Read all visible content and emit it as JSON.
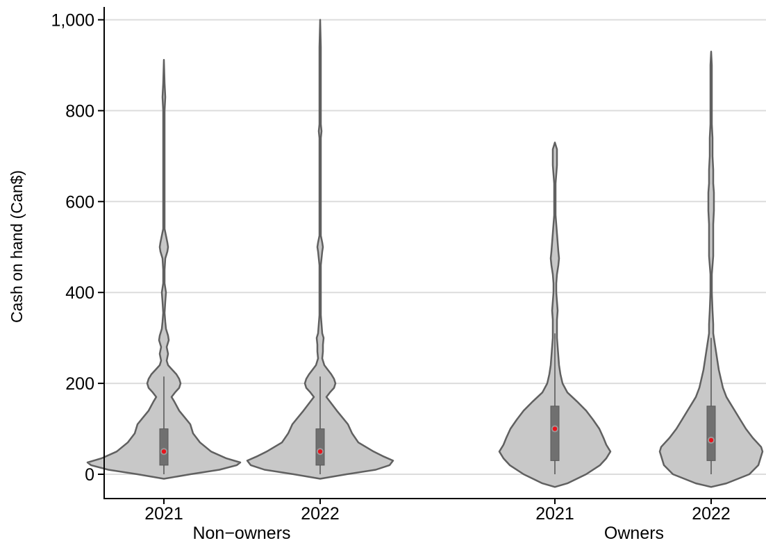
{
  "chart_data": {
    "type": "violin",
    "title": "",
    "ylabel": "Cash on hand (Can$)",
    "xlabel": "",
    "ylim": [
      -50,
      1030
    ],
    "y_ticks": [
      0,
      200,
      400,
      600,
      800,
      1000
    ],
    "y_tick_labels": [
      "0",
      "200",
      "400",
      "600",
      "800",
      "1,000"
    ],
    "grid": true,
    "legend": "none",
    "colors": {
      "violin_fill": "#c8c8c8",
      "violin_stroke": "#606060",
      "box_fill": "#707070",
      "median_dot": "#e8141c",
      "gridline": "#dcdcdc"
    },
    "groups": [
      {
        "name": "Non-owners",
        "label": "Non−owners",
        "violins": [
          {
            "year": "2021",
            "whisker": [
              0,
              215
            ],
            "q1": 20,
            "median": 50,
            "q3": 100,
            "profile": [
              [
                -10,
                0
              ],
              [
                0,
                38
              ],
              [
                10,
                80
              ],
              [
                20,
                105
              ],
              [
                26,
                110
              ],
              [
                35,
                90
              ],
              [
                50,
                68
              ],
              [
                70,
                52
              ],
              [
                90,
                42
              ],
              [
                110,
                38
              ],
              [
                125,
                30
              ],
              [
                140,
                22
              ],
              [
                160,
                15
              ],
              [
                170,
                11
              ],
              [
                180,
                16
              ],
              [
                190,
                22
              ],
              [
                200,
                24
              ],
              [
                210,
                22
              ],
              [
                220,
                18
              ],
              [
                230,
                12
              ],
              [
                240,
                6
              ],
              [
                250,
                4
              ],
              [
                265,
                6
              ],
              [
                280,
                4
              ],
              [
                295,
                7
              ],
              [
                305,
                6
              ],
              [
                320,
                3
              ],
              [
                335,
                2
              ],
              [
                355,
                1
              ],
              [
                380,
                2
              ],
              [
                400,
                3
              ],
              [
                420,
                1
              ],
              [
                450,
                1
              ],
              [
                475,
                2
              ],
              [
                490,
                5
              ],
              [
                500,
                6
              ],
              [
                510,
                5
              ],
              [
                525,
                3
              ],
              [
                540,
                1
              ],
              [
                600,
                1
              ],
              [
                650,
                1
              ],
              [
                700,
                1
              ],
              [
                750,
                1
              ],
              [
                800,
                1
              ],
              [
                830,
                2
              ],
              [
                860,
                1
              ],
              [
                912,
                0
              ]
            ]
          },
          {
            "year": "2022",
            "whisker": [
              0,
              215
            ],
            "q1": 20,
            "median": 50,
            "q3": 100,
            "profile": [
              [
                -10,
                0
              ],
              [
                0,
                38
              ],
              [
                10,
                80
              ],
              [
                20,
                100
              ],
              [
                30,
                105
              ],
              [
                40,
                90
              ],
              [
                50,
                77
              ],
              [
                70,
                55
              ],
              [
                90,
                46
              ],
              [
                110,
                40
              ],
              [
                125,
                32
              ],
              [
                140,
                24
              ],
              [
                160,
                14
              ],
              [
                170,
                9
              ],
              [
                180,
                14
              ],
              [
                190,
                20
              ],
              [
                200,
                22
              ],
              [
                210,
                20
              ],
              [
                220,
                16
              ],
              [
                230,
                11
              ],
              [
                240,
                6
              ],
              [
                255,
                3
              ],
              [
                270,
                4
              ],
              [
                285,
                4
              ],
              [
                300,
                5
              ],
              [
                310,
                3
              ],
              [
                330,
                2
              ],
              [
                350,
                1
              ],
              [
                380,
                1
              ],
              [
                420,
                1
              ],
              [
                460,
                1
              ],
              [
                490,
                3
              ],
              [
                500,
                4
              ],
              [
                510,
                3
              ],
              [
                525,
                1
              ],
              [
                560,
                1
              ],
              [
                600,
                1
              ],
              [
                650,
                1
              ],
              [
                700,
                1
              ],
              [
                740,
                1
              ],
              [
                755,
                2
              ],
              [
                770,
                1
              ],
              [
                820,
                1
              ],
              [
                880,
                1
              ],
              [
                940,
                1
              ],
              [
                1000,
                0
              ]
            ]
          }
        ]
      },
      {
        "name": "Owners",
        "label": "Owners",
        "violins": [
          {
            "year": "2021",
            "whisker": [
              0,
              310
            ],
            "q1": 30,
            "median": 100,
            "q3": 150,
            "profile": [
              [
                -28,
                0
              ],
              [
                -20,
                18
              ],
              [
                0,
                45
              ],
              [
                20,
                65
              ],
              [
                35,
                74
              ],
              [
                50,
                80
              ],
              [
                65,
                74
              ],
              [
                80,
                70
              ],
              [
                100,
                64
              ],
              [
                120,
                55
              ],
              [
                140,
                45
              ],
              [
                160,
                32
              ],
              [
                180,
                18
              ],
              [
                200,
                11
              ],
              [
                220,
                8
              ],
              [
                240,
                6
              ],
              [
                260,
                5
              ],
              [
                280,
                4
              ],
              [
                300,
                3
              ],
              [
                320,
                3
              ],
              [
                340,
                3
              ],
              [
                360,
                4
              ],
              [
                380,
                3
              ],
              [
                400,
                2
              ],
              [
                420,
                2
              ],
              [
                440,
                3
              ],
              [
                460,
                5
              ],
              [
                475,
                6
              ],
              [
                490,
                5
              ],
              [
                510,
                4
              ],
              [
                530,
                3
              ],
              [
                550,
                2
              ],
              [
                570,
                1
              ],
              [
                600,
                1
              ],
              [
                640,
                1
              ],
              [
                660,
                2
              ],
              [
                680,
                3
              ],
              [
                700,
                3
              ],
              [
                715,
                3
              ],
              [
                730,
                0
              ]
            ]
          },
          {
            "year": "2022",
            "whisker": [
              0,
              300
            ],
            "q1": 30,
            "median": 75,
            "q3": 150,
            "profile": [
              [
                -28,
                0
              ],
              [
                -20,
                22
              ],
              [
                0,
                55
              ],
              [
                20,
                68
              ],
              [
                40,
                72
              ],
              [
                50,
                74
              ],
              [
                60,
                72
              ],
              [
                80,
                60
              ],
              [
                100,
                50
              ],
              [
                120,
                42
              ],
              [
                140,
                34
              ],
              [
                160,
                26
              ],
              [
                170,
                22
              ],
              [
                190,
                17
              ],
              [
                210,
                14
              ],
              [
                230,
                11
              ],
              [
                250,
                9
              ],
              [
                270,
                7
              ],
              [
                290,
                5
              ],
              [
                310,
                3
              ],
              [
                330,
                3
              ],
              [
                360,
                2
              ],
              [
                400,
                1
              ],
              [
                440,
                1
              ],
              [
                460,
                2
              ],
              [
                480,
                3
              ],
              [
                500,
                3
              ],
              [
                520,
                3
              ],
              [
                550,
                3
              ],
              [
                580,
                4
              ],
              [
                600,
                4
              ],
              [
                620,
                4
              ],
              [
                640,
                3
              ],
              [
                670,
                3
              ],
              [
                700,
                2
              ],
              [
                740,
                2
              ],
              [
                770,
                1
              ],
              [
                800,
                1
              ],
              [
                850,
                1
              ],
              [
                900,
                1
              ],
              [
                930,
                0
              ]
            ]
          }
        ]
      }
    ]
  }
}
